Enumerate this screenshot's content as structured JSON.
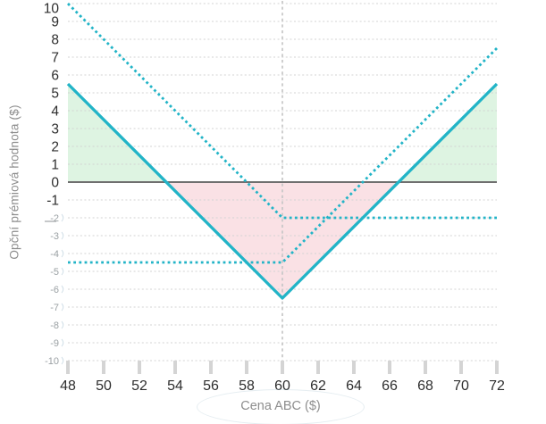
{
  "chart_data": {
    "type": "line",
    "title": "",
    "xlabel": "Cena ABC ($)",
    "ylabel": "Opční prémiová hodnota ($)",
    "xlim": [
      48,
      72
    ],
    "ylim": [
      -10,
      10
    ],
    "grid": true,
    "legend": "none",
    "strike_line_x": 60,
    "x_ticks": [
      48,
      50,
      52,
      54,
      56,
      58,
      60,
      62,
      64,
      66,
      68,
      70,
      72
    ],
    "y_ticks": [
      {
        "value": 10,
        "size": "large"
      },
      {
        "value": 9,
        "size": "large"
      },
      {
        "value": 8,
        "size": "large"
      },
      {
        "value": 7,
        "size": "large"
      },
      {
        "value": 6,
        "size": "large"
      },
      {
        "value": 5,
        "size": "large"
      },
      {
        "value": 4,
        "size": "large"
      },
      {
        "value": 3,
        "size": "large"
      },
      {
        "value": 2,
        "size": "large"
      },
      {
        "value": 1,
        "size": "large"
      },
      {
        "value": 0,
        "size": "large"
      },
      {
        "value": -1,
        "size": "large"
      },
      {
        "value": -2,
        "size": "small"
      },
      {
        "value": -3,
        "size": "small"
      },
      {
        "value": -4,
        "size": "small"
      },
      {
        "value": -5,
        "size": "small"
      },
      {
        "value": -6,
        "size": "small"
      },
      {
        "value": -7,
        "size": "small"
      },
      {
        "value": -8,
        "size": "small"
      },
      {
        "value": -9,
        "size": "small"
      },
      {
        "value": -10,
        "size": "small"
      }
    ],
    "series": [
      {
        "name": "long-put-leg",
        "style": "dotted",
        "color": "#22b4c7",
        "points": [
          [
            48,
            10
          ],
          [
            60,
            -2
          ],
          [
            72,
            -2
          ]
        ]
      },
      {
        "name": "long-call-leg",
        "style": "dotted",
        "color": "#22b4c7",
        "points": [
          [
            48,
            -4.5
          ],
          [
            60,
            -4.5
          ],
          [
            72,
            7.5
          ]
        ]
      },
      {
        "name": "long-straddle-payoff",
        "style": "solid",
        "color": "#22b4c7",
        "points": [
          [
            48,
            5.5
          ],
          [
            60,
            -6.5
          ],
          [
            72,
            5.5
          ]
        ]
      }
    ],
    "regions": [
      {
        "name": "profit-zone-left",
        "color": "#def4e2",
        "points": [
          [
            48,
            5.5
          ],
          [
            53.5,
            0
          ],
          [
            48,
            0
          ]
        ]
      },
      {
        "name": "loss-zone",
        "color": "#fae1e5",
        "points": [
          [
            53.5,
            0
          ],
          [
            66.5,
            0
          ],
          [
            60,
            -6.5
          ]
        ]
      },
      {
        "name": "profit-zone-right",
        "color": "#def4e2",
        "points": [
          [
            66.5,
            0
          ],
          [
            72,
            0
          ],
          [
            72,
            5.5
          ]
        ]
      }
    ],
    "colors": {
      "line": "#22b4c7",
      "profit_fill": "#def4e2",
      "loss_fill": "#fae1e5",
      "zero_line": "#6f6f6f",
      "grid_line": "#d3d3d3",
      "strike_line": "#c7c7c7",
      "x_tick_mark": "#d4d4d4",
      "tick_label_dark": "#2e2e2e",
      "tick_label_light": "#9aa0a3",
      "axis_title": "#8d8d8d"
    }
  }
}
